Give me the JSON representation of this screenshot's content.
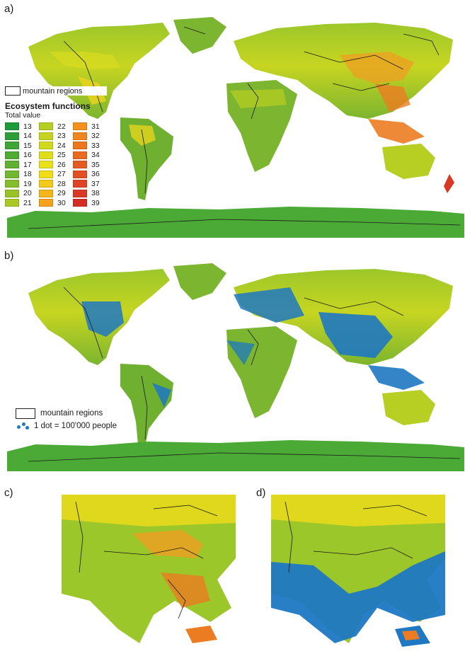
{
  "panels": {
    "a": "a)",
    "b": "b)",
    "c": "c)",
    "d": "d)"
  },
  "legend_a": {
    "mountain_label": "mountain regions",
    "title": "Ecosystem functions",
    "subtitle": "Total value",
    "classes": [
      {
        "value": "13",
        "color": "#1f9a3b"
      },
      {
        "value": "14",
        "color": "#2e9e38"
      },
      {
        "value": "15",
        "color": "#3ea536"
      },
      {
        "value": "16",
        "color": "#4eab34"
      },
      {
        "value": "17",
        "color": "#60b132"
      },
      {
        "value": "18",
        "color": "#72b730"
      },
      {
        "value": "19",
        "color": "#86bd2c"
      },
      {
        "value": "20",
        "color": "#98c328"
      },
      {
        "value": "21",
        "color": "#a9c925"
      },
      {
        "value": "22",
        "color": "#b7ce22"
      },
      {
        "value": "23",
        "color": "#c5d420"
      },
      {
        "value": "24",
        "color": "#d2da1e"
      },
      {
        "value": "25",
        "color": "#dede1c"
      },
      {
        "value": "26",
        "color": "#e8e01b"
      },
      {
        "value": "27",
        "color": "#f0dc18"
      },
      {
        "value": "28",
        "color": "#f3c91a"
      },
      {
        "value": "29",
        "color": "#f5b61c"
      },
      {
        "value": "30",
        "color": "#f5a21d"
      },
      {
        "value": "31",
        "color": "#f3931e"
      },
      {
        "value": "32",
        "color": "#f0861f"
      },
      {
        "value": "33",
        "color": "#ec7720"
      },
      {
        "value": "34",
        "color": "#e96a21"
      },
      {
        "value": "35",
        "color": "#e55c22"
      },
      {
        "value": "36",
        "color": "#e14f23"
      },
      {
        "value": "37",
        "color": "#dd4324"
      },
      {
        "value": "38",
        "color": "#d93825"
      },
      {
        "value": "39",
        "color": "#d42d26"
      }
    ]
  },
  "legend_b": {
    "mountain_label": "mountain regions",
    "dot_label": "1 dot = 100'000 people"
  },
  "colors": {
    "population_dot": "#1e78c2",
    "land_base": "#8fbf2e",
    "mountain_outline": "#1a1a1a"
  }
}
